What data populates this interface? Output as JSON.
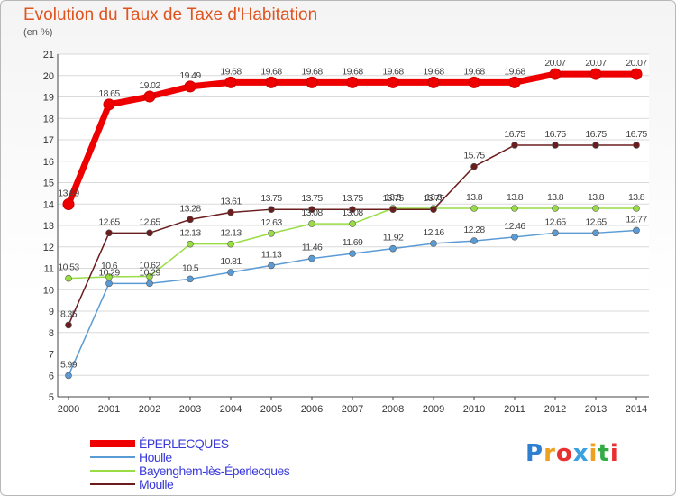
{
  "title": "Evolution du Taux de Taxe d'Habitation",
  "subtitle": "(en %)",
  "chart_data": {
    "type": "line",
    "title": "Evolution du Taux de Taxe d'Habitation",
    "subtitle": "(en %)",
    "xlabel": "",
    "ylabel": "",
    "ylim": [
      5,
      21
    ],
    "grid": "horizontal",
    "legend_position": "bottom",
    "categories": [
      "2000",
      "2001",
      "2002",
      "2003",
      "2004",
      "2005",
      "2006",
      "2007",
      "2008",
      "2009",
      "2010",
      "2011",
      "2012",
      "2013",
      "2014"
    ],
    "y_ticks": [
      5,
      6,
      7,
      8,
      9,
      10,
      11,
      12,
      13,
      14,
      15,
      16,
      17,
      18,
      19,
      20,
      21
    ],
    "series": [
      {
        "name": "ÉPERLECQUES",
        "color": "#ee0000",
        "values": [
          13.99,
          18.65,
          19.02,
          19.49,
          19.68,
          19.68,
          19.68,
          19.68,
          19.68,
          19.68,
          19.68,
          19.68,
          20.07,
          20.07,
          20.07
        ],
        "labels": [
          "13.99",
          "18.65",
          "19.02",
          "19.49",
          "19.68",
          "19.68",
          "19.68",
          "19.68",
          "19.68",
          "19.68",
          "19.68",
          "19.68",
          "20.07",
          "20.07",
          "20.07"
        ]
      },
      {
        "name": "Houlle",
        "color": "#5b9bd5",
        "values": [
          5.99,
          10.29,
          10.29,
          10.5,
          10.81,
          11.13,
          11.46,
          11.69,
          11.92,
          12.16,
          12.28,
          12.46,
          12.65,
          12.65,
          12.77
        ],
        "labels": [
          "5.99",
          "10.29",
          "10.29",
          "10.5",
          "10.81",
          "11.13",
          "11.46",
          "11.69",
          "11.92",
          "12.16",
          "12.28",
          "12.46",
          "12.65",
          "12.65",
          "12.77"
        ]
      },
      {
        "name": "Bayenghem-lès-Éperlecques",
        "color": "#99dd44",
        "values": [
          10.53,
          10.6,
          10.62,
          12.13,
          12.13,
          12.63,
          13.08,
          13.08,
          13.8,
          13.8,
          13.8,
          13.8,
          13.8,
          13.8,
          13.8
        ],
        "labels": [
          "10.53",
          "10.6",
          "10.62",
          "12.13",
          "12.13",
          "12.63",
          "13.08",
          "13.08",
          "13.8",
          "13.8",
          "13.8",
          "13.8",
          "13.8",
          "13.8",
          "13.8"
        ]
      },
      {
        "name": "Moulle",
        "color": "#6b1d1d",
        "values": [
          8.35,
          12.65,
          12.65,
          13.28,
          13.61,
          13.75,
          13.75,
          13.75,
          13.75,
          13.75,
          15.75,
          16.75,
          16.75,
          16.75,
          16.75
        ],
        "labels": [
          "8.35",
          "12.65",
          "12.65",
          "13.28",
          "13.61",
          "13.75",
          "13.75",
          "13.75",
          "13.75",
          "13.75",
          "15.75",
          "16.75",
          "16.75",
          "16.75",
          "16.75"
        ]
      }
    ]
  },
  "logo": {
    "letters": [
      "P",
      "r",
      "o",
      "x",
      "i",
      "t",
      "i"
    ],
    "colors": [
      "#2f7fd0",
      "#f0a020",
      "#e83030",
      "#3aa0e0",
      "#f0a020",
      "#33aa44",
      "#e83030"
    ]
  }
}
